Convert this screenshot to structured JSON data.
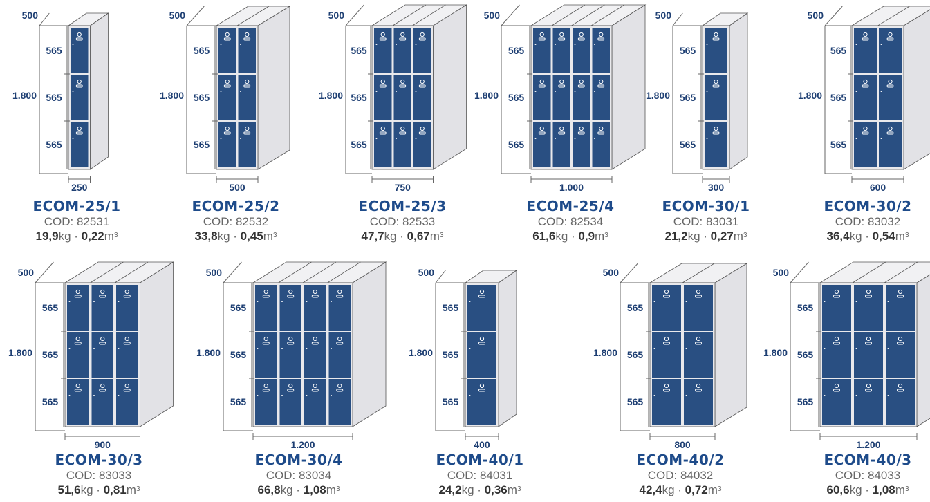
{
  "colors": {
    "door": "#294f82",
    "frame": "#e9e9ec",
    "frame_line": "#555555",
    "dim_line": "#666666",
    "model_text": "#1e4b8a",
    "dim_text": "#1e3f73"
  },
  "labels": {
    "cod": "COD:",
    "kg": "kg",
    "dot": " · ",
    "m": "m",
    "cube": "3"
  },
  "lockers": [
    {
      "model": "ECOM-25/1",
      "cod": "82531",
      "weight": "19,9",
      "volume": "0,22",
      "width_label": "250",
      "height_label": "1.800",
      "depth_label": "500",
      "compartment_label": "565",
      "columns": 1
    },
    {
      "model": "ECOM-25/2",
      "cod": "82532",
      "weight": "33,8",
      "volume": "0,45",
      "width_label": "500",
      "height_label": "1.800",
      "depth_label": "500",
      "compartment_label": "565",
      "columns": 2
    },
    {
      "model": "ECOM-25/3",
      "cod": "82533",
      "weight": "47,7",
      "volume": "0,67",
      "width_label": "750",
      "height_label": "1.800",
      "depth_label": "500",
      "compartment_label": "565",
      "columns": 3
    },
    {
      "model": "ECOM-25/4",
      "cod": "82534",
      "weight": "61,6",
      "volume": "0,9",
      "width_label": "1.000",
      "height_label": "1.800",
      "depth_label": "500",
      "compartment_label": "565",
      "columns": 4
    },
    {
      "model": "ECOM-30/1",
      "cod": "83031",
      "weight": "21,2",
      "volume": "0,27",
      "width_label": "300",
      "height_label": "1.800",
      "depth_label": "500",
      "compartment_label": "565",
      "columns": 1
    },
    {
      "model": "ECOM-30/2",
      "cod": "83032",
      "weight": "36,4",
      "volume": "0,54",
      "width_label": "600",
      "height_label": "1.800",
      "depth_label": "500",
      "compartment_label": "565",
      "columns": 2
    },
    {
      "model": "ECOM-30/3",
      "cod": "83033",
      "weight": "51,6",
      "volume": "0,81",
      "width_label": "900",
      "height_label": "1.800",
      "depth_label": "500",
      "compartment_label": "565",
      "columns": 3
    },
    {
      "model": "ECOM-30/4",
      "cod": "83034",
      "weight": "66,8",
      "volume": "1,08",
      "width_label": "1.200",
      "height_label": "1.800",
      "depth_label": "500",
      "compartment_label": "565",
      "columns": 4
    },
    {
      "model": "ECOM-40/1",
      "cod": "84031",
      "weight": "24,2",
      "volume": "0,36",
      "width_label": "400",
      "height_label": "1.800",
      "depth_label": "500",
      "compartment_label": "565",
      "columns": 1
    },
    {
      "model": "ECOM-40/2",
      "cod": "84032",
      "weight": "42,4",
      "volume": "0,72",
      "width_label": "800",
      "height_label": "1.800",
      "depth_label": "500",
      "compartment_label": "565",
      "columns": 2
    },
    {
      "model": "ECOM-40/3",
      "cod": "84033",
      "weight": "60,6",
      "volume": "1,08",
      "width_label": "1.200",
      "height_label": "1.800",
      "depth_label": "500",
      "compartment_label": "565",
      "columns": 3
    }
  ]
}
